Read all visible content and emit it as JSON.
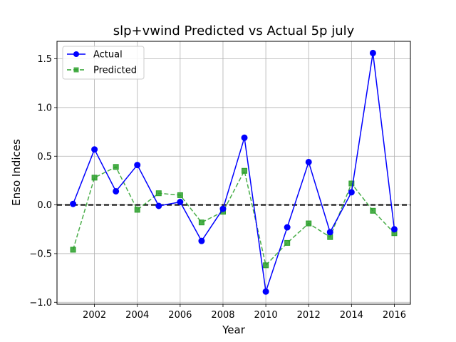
{
  "chart_data": {
    "type": "line",
    "title": "slp+vwind Predicted vs Actual 5p july",
    "xlabel": "Year",
    "ylabel": "Enso Indices",
    "x": [
      2001,
      2002,
      2003,
      2004,
      2005,
      2006,
      2007,
      2008,
      2009,
      2010,
      2011,
      2012,
      2013,
      2014,
      2015,
      2016
    ],
    "xlim": [
      2000.25,
      2016.75
    ],
    "ylim": [
      -1.02,
      1.68
    ],
    "xticks": [
      2002,
      2004,
      2006,
      2008,
      2010,
      2012,
      2014,
      2016
    ],
    "xtick_labels": [
      "2002",
      "2004",
      "2006",
      "2008",
      "2010",
      "2012",
      "2014",
      "2016"
    ],
    "yticks": [
      -1.0,
      -0.5,
      0.0,
      0.5,
      1.0,
      1.5
    ],
    "ytick_labels": [
      "−1.0",
      "−0.5",
      "0.0",
      "0.5",
      "1.0",
      "1.5"
    ],
    "grid": true,
    "reference_line": {
      "y": 0.0,
      "style": "dashed",
      "color": "#000000"
    },
    "legend_position": "upper-left",
    "series": [
      {
        "name": "Actual",
        "color": "#0000ff",
        "line_style": "solid",
        "marker": "circle",
        "values": [
          0.01,
          0.57,
          0.14,
          0.41,
          -0.01,
          0.03,
          -0.37,
          -0.04,
          0.69,
          -0.89,
          -0.23,
          0.44,
          -0.28,
          0.13,
          1.56,
          -0.25
        ]
      },
      {
        "name": "Predicted",
        "color": "#2ca02c",
        "line_style": "dashed",
        "marker": "square",
        "values": [
          -0.46,
          0.28,
          0.39,
          -0.05,
          0.12,
          0.1,
          -0.18,
          -0.07,
          0.35,
          -0.62,
          -0.39,
          -0.19,
          -0.33,
          0.22,
          -0.06,
          -0.29
        ]
      }
    ]
  }
}
